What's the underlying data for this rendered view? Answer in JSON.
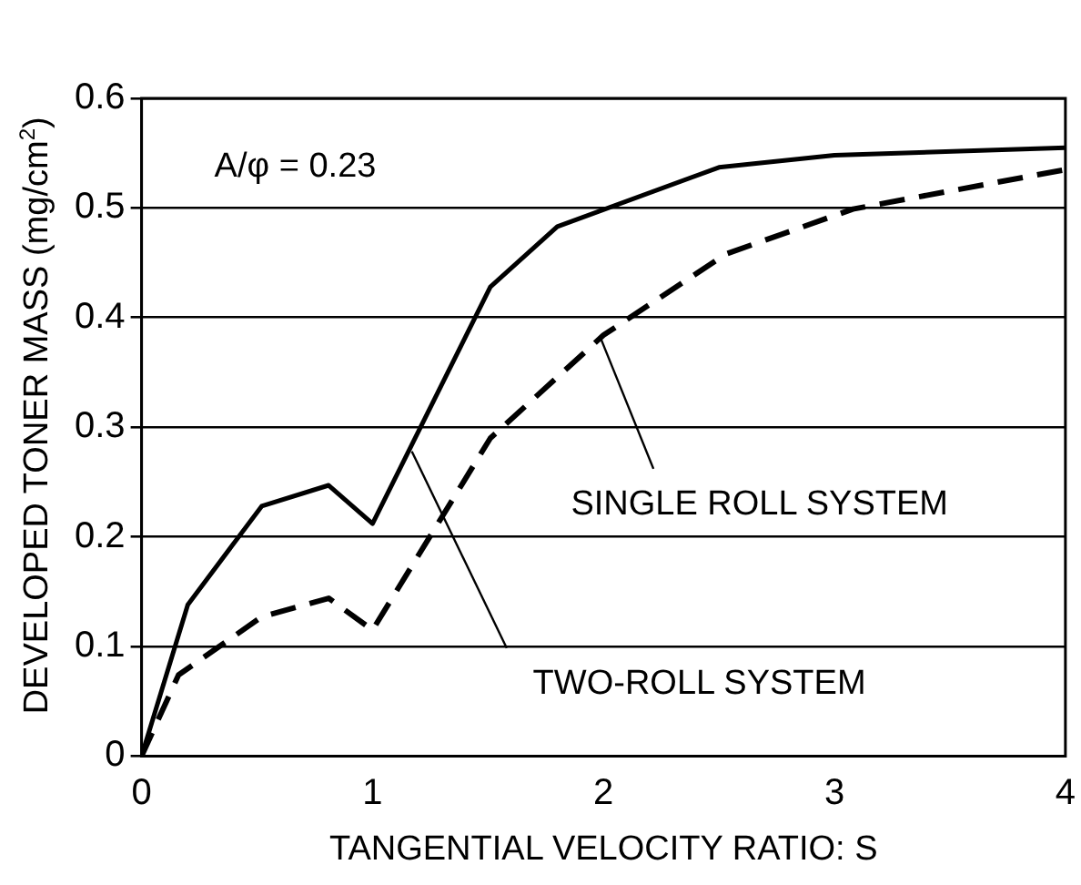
{
  "chart_data": {
    "type": "line",
    "xlabel": "TANGENTIAL VELOCITY RATIO: S",
    "ylabel": "DEVELOPED TONER MASS (mg/cm$^{2}$)",
    "xlim": [
      0,
      4
    ],
    "xticks": [
      0,
      1,
      2,
      3,
      4
    ],
    "ylim": [
      0,
      0.6
    ],
    "yticks": [
      0,
      0.1,
      0.2,
      0.3,
      0.4,
      0.5,
      0.6
    ],
    "grid": "y",
    "legend": false,
    "marker": "none",
    "series": [
      {
        "color": "#000000",
        "line_style": "solid",
        "x": [
          0,
          0.2,
          0.52,
          0.81,
          1.0,
          1.51,
          1.8,
          2.5,
          3.0,
          4.0
        ],
        "values": [
          0,
          0.138,
          0.228,
          0.247,
          0.212,
          0.428,
          0.483,
          0.537,
          0.548,
          0.555
        ]
      },
      {
        "color": "#000000",
        "line_style": "dashed",
        "x": [
          0,
          0.16,
          0.52,
          0.81,
          1.0,
          1.51,
          2.0,
          2.53,
          3.08,
          4.0
        ],
        "values": [
          0,
          0.074,
          0.127,
          0.144,
          0.115,
          0.29,
          0.384,
          0.458,
          0.499,
          0.535
        ]
      }
    ],
    "annotations": [
      "A/φ = 0.23",
      {
        "text": "TWO-ROLL SYSTEM",
        "x": 1.17,
        "y": 0.278
      },
      {
        "text": "SINGLE ROLL SYSTEM",
        "x": 1.99,
        "y": 0.38
      }
    ]
  }
}
